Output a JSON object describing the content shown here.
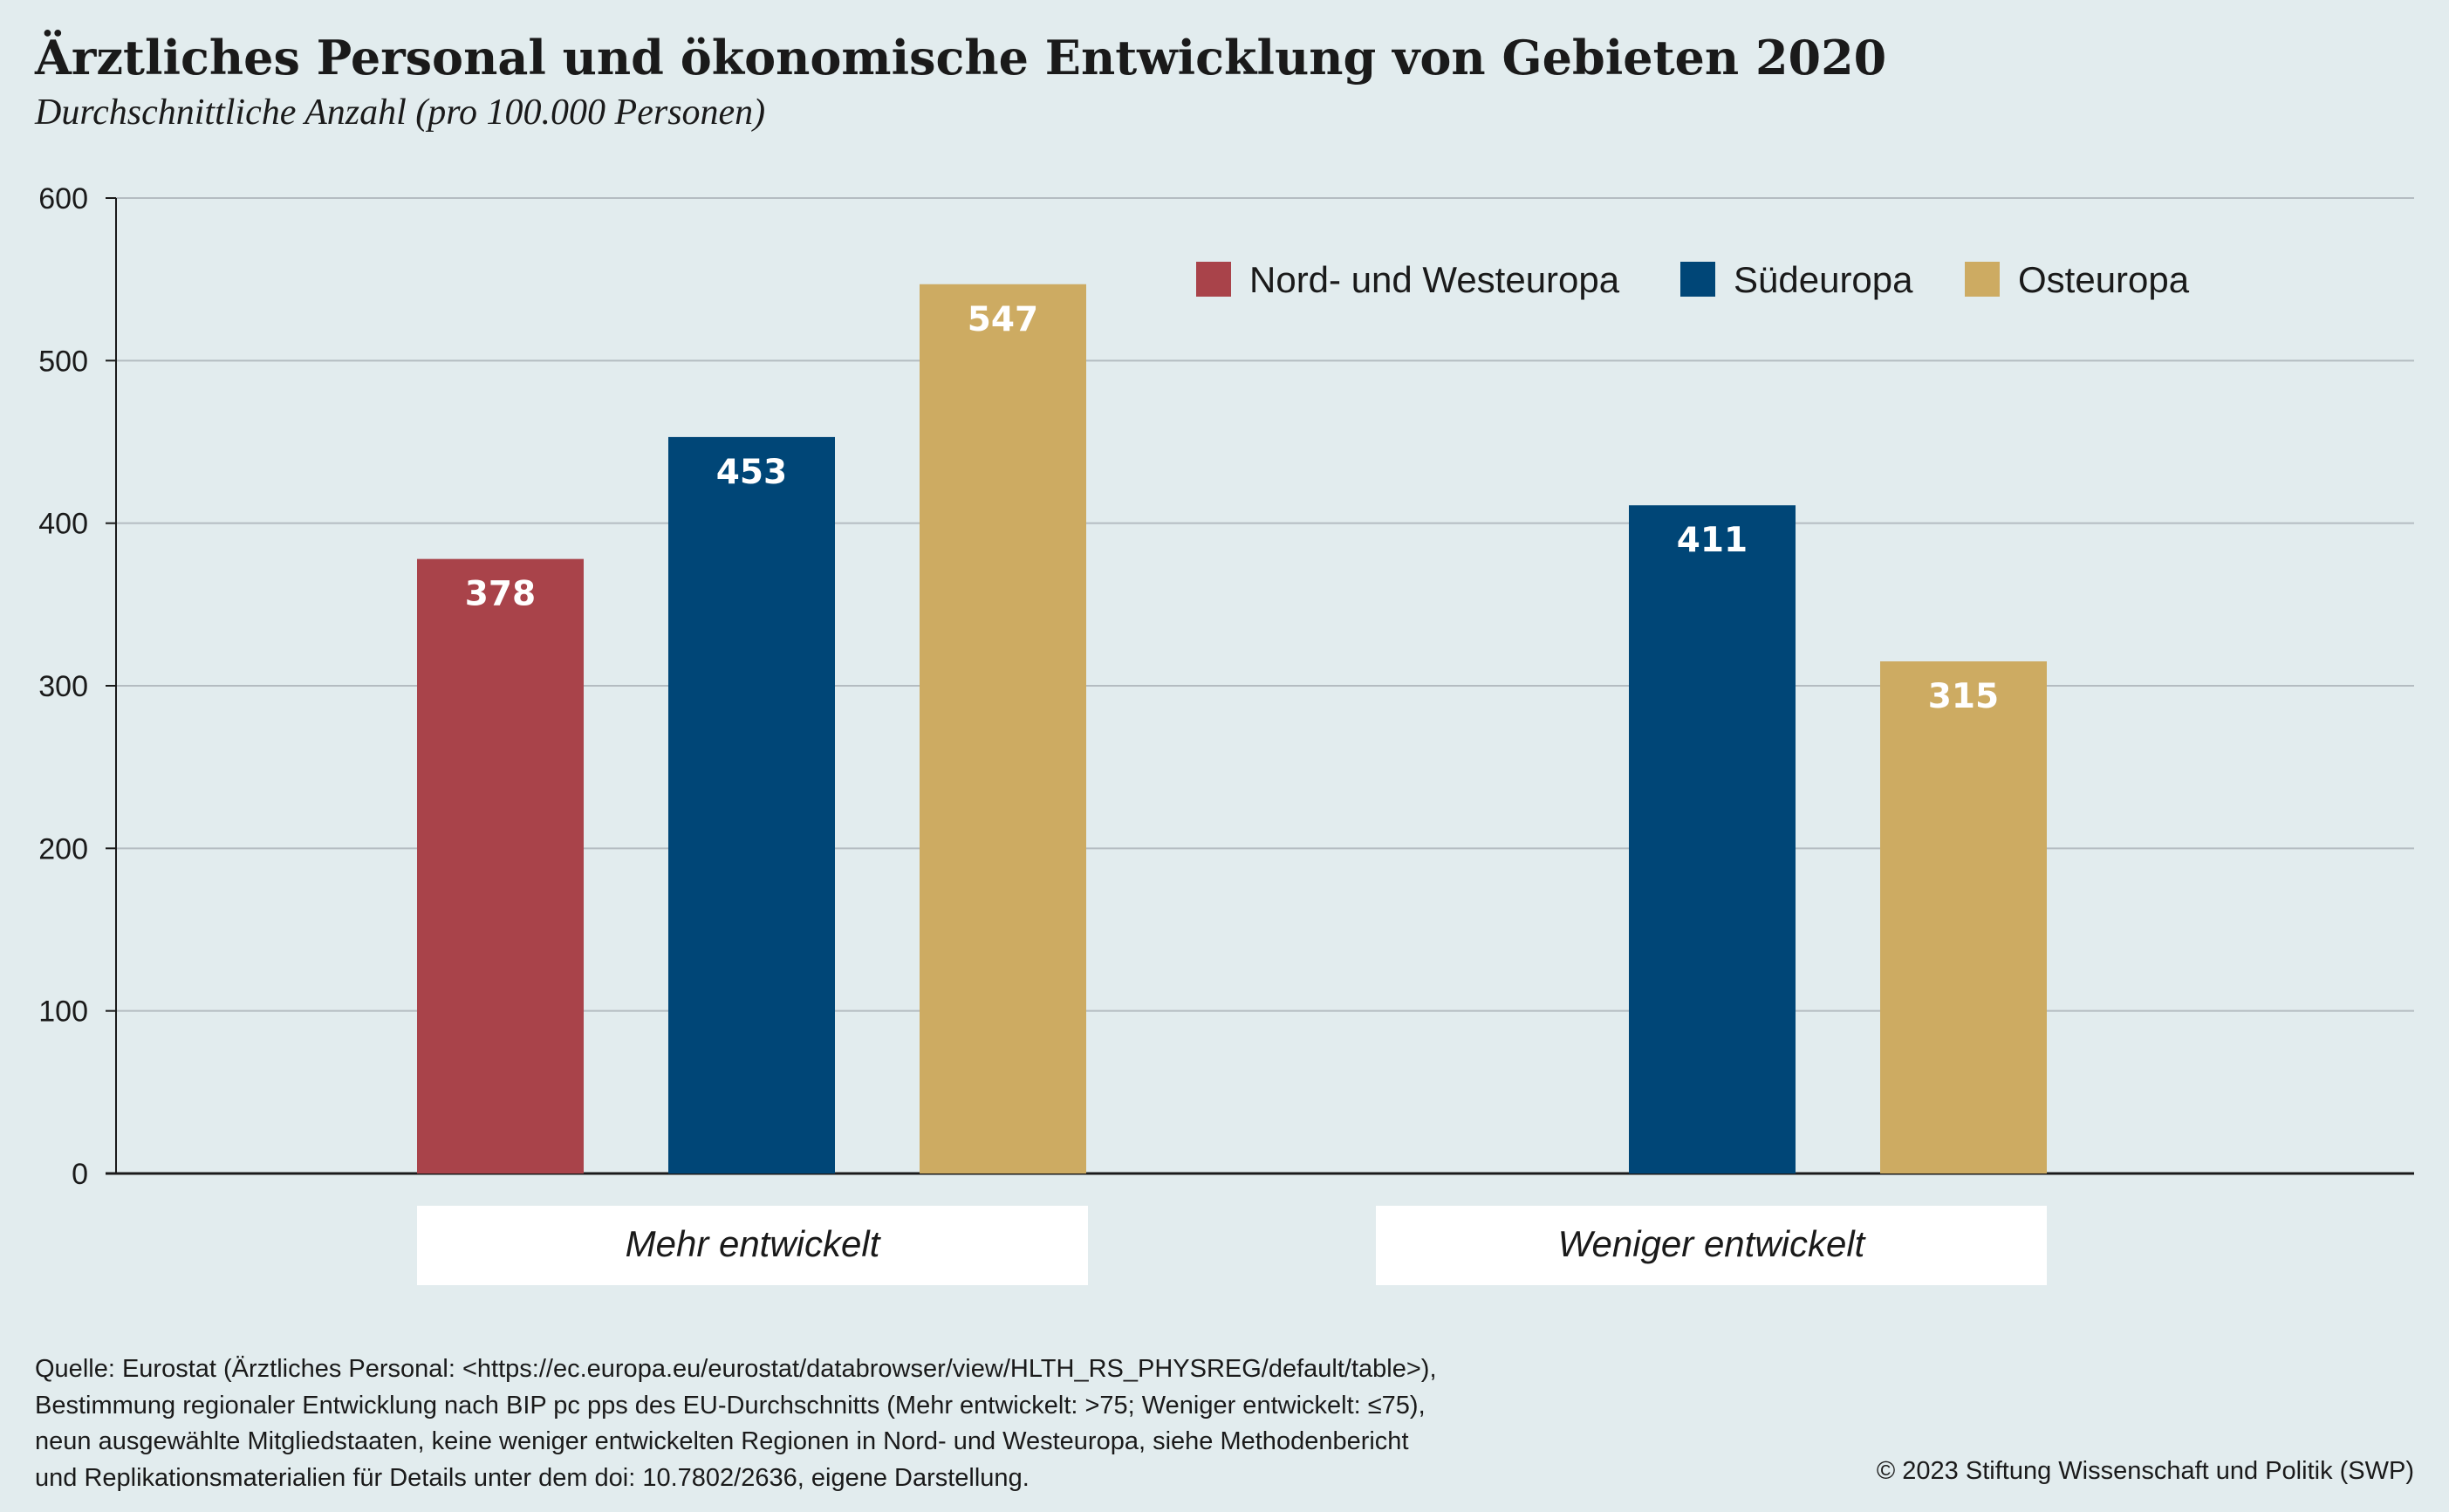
{
  "title": "Ärztliches Personal und ökonomische Entwicklung von Gebieten 2020",
  "subtitle": "Durchschnittliche Anzahl (pro 100.000 Personen)",
  "colors": {
    "Nord- und Westeuropa": "#a9434a",
    "Südeuropa": "#004677",
    "Osteuropa": "#cdab62",
    "background": "#e2ecee",
    "category_box": "#ffffff",
    "gridline": "#b4bcc1",
    "value_label": "#ffffff"
  },
  "chart_data": {
    "type": "bar",
    "title": "Ärztliches Personal und ökonomische Entwicklung von Gebieten 2020",
    "subtitle": "Durchschnittliche Anzahl (pro 100.000 Personen)",
    "categories": [
      "Mehr entwickelt",
      "Weniger  entwickelt"
    ],
    "series": [
      {
        "name": "Nord- und Westeuropa",
        "values": [
          378,
          null
        ]
      },
      {
        "name": "Südeuropa",
        "values": [
          453,
          411
        ]
      },
      {
        "name": "Osteuropa",
        "values": [
          547,
          315
        ]
      }
    ],
    "ylim": [
      0,
      600
    ],
    "yticks": [
      0,
      100,
      200,
      300,
      400,
      500,
      600
    ],
    "grid": true,
    "legend_position": "top-right",
    "data_labels": true
  },
  "footer": {
    "source": "Quelle: Eurostat (Ärztliches Personal: <https://ec.europa.eu/eurostat/databrowser/view/HLTH_RS_PHYSREG/default/table>),\nBestimmung regionaler Entwicklung nach BIP pc pps des EU-Durchschnitts (Mehr entwickelt: >75; Weniger entwickelt: ≤75),\nneun ausgewählte Mitgliedstaaten, keine weniger entwickelten Regionen in Nord- und Westeuropa, siehe Methodenbericht\nund Replikationsmaterialien für Details unter dem doi: 10.7802/2636, eigene Darstellung.",
    "copyright": "© 2023 Stiftung Wissenschaft und Politik (SWP)"
  }
}
